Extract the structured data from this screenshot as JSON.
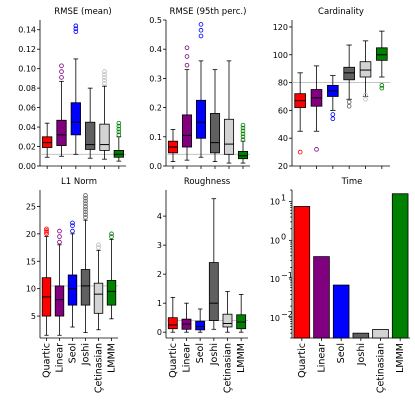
{
  "chart_data": [
    {
      "type": "box",
      "title": "RMSE (mean)",
      "categories": [
        "Quartic",
        "Linear",
        "Seol",
        "Joshi",
        "Çetinasian",
        "LMMM"
      ],
      "colors": [
        "#ff0000",
        "#800080",
        "#0000ff",
        "#606060",
        "#d3d3d3",
        "#008000"
      ],
      "ylim": [
        0,
        0.15
      ],
      "yticks": [
        "0.00",
        "0.02",
        "0.04",
        "0.06",
        "0.08",
        "0.10",
        "0.12",
        "0.14"
      ],
      "ytick_values": [
        0,
        0.02,
        0.04,
        0.06,
        0.08,
        0.1,
        0.12,
        0.14
      ],
      "hline": 0.012,
      "boxes": [
        {
          "min": 0.009,
          "q1": 0.019,
          "median": 0.024,
          "q3": 0.03,
          "max": 0.044,
          "outliers": []
        },
        {
          "min": 0.01,
          "q1": 0.021,
          "median": 0.032,
          "q3": 0.047,
          "max": 0.087,
          "outliers": [
            0.091,
            0.097,
            0.103
          ]
        },
        {
          "min": 0.012,
          "q1": 0.032,
          "median": 0.045,
          "q3": 0.065,
          "max": 0.11,
          "outliers": [
            0.138,
            0.141,
            0.144
          ]
        },
        {
          "min": 0.008,
          "q1": 0.017,
          "median": 0.022,
          "q3": 0.045,
          "max": 0.08,
          "outliers": []
        },
        {
          "min": 0.007,
          "q1": 0.016,
          "median": 0.022,
          "q3": 0.043,
          "max": 0.082,
          "outliers": [
            0.085,
            0.088,
            0.091,
            0.094,
            0.097
          ]
        },
        {
          "min": 0.005,
          "q1": 0.009,
          "median": 0.012,
          "q3": 0.016,
          "max": 0.03,
          "outliers": [
            0.032,
            0.035,
            0.038,
            0.041,
            0.044
          ]
        }
      ]
    },
    {
      "type": "box",
      "title": "RMSE (95th perc.)",
      "categories": [
        "Quartic",
        "Linear",
        "Seol",
        "Joshi",
        "Çetinasian",
        "LMMM"
      ],
      "colors": [
        "#ff0000",
        "#800080",
        "#0000ff",
        "#606060",
        "#d3d3d3",
        "#008000"
      ],
      "ylim": [
        0,
        0.5
      ],
      "yticks": [
        "0.0",
        "0.1",
        "0.2",
        "0.3",
        "0.4",
        "0.5"
      ],
      "ytick_values": [
        0,
        0.1,
        0.2,
        0.3,
        0.4,
        0.5
      ],
      "hline": 0.04,
      "boxes": [
        {
          "min": 0.015,
          "q1": 0.045,
          "median": 0.065,
          "q3": 0.085,
          "max": 0.125,
          "outliers": []
        },
        {
          "min": 0.02,
          "q1": 0.065,
          "median": 0.105,
          "q3": 0.175,
          "max": 0.33,
          "outliers": [
            0.345,
            0.375,
            0.405
          ]
        },
        {
          "min": 0.03,
          "q1": 0.095,
          "median": 0.15,
          "q3": 0.225,
          "max": 0.36,
          "outliers": [
            0.445,
            0.465,
            0.485
          ]
        },
        {
          "min": 0.015,
          "q1": 0.045,
          "median": 0.08,
          "q3": 0.18,
          "max": 0.33,
          "outliers": []
        },
        {
          "min": 0.01,
          "q1": 0.04,
          "median": 0.075,
          "q3": 0.16,
          "max": 0.36,
          "outliers": []
        },
        {
          "min": 0.01,
          "q1": 0.025,
          "median": 0.035,
          "q3": 0.05,
          "max": 0.085,
          "outliers": [
            0.09,
            0.1,
            0.11,
            0.12,
            0.13,
            0.14
          ]
        }
      ]
    },
    {
      "type": "box",
      "title": "Cardinality",
      "categories": [
        "Quartic",
        "Linear",
        "Seol",
        "Joshi",
        "Çetinasian",
        "LMMM"
      ],
      "colors": [
        "#ff0000",
        "#800080",
        "#0000ff",
        "#606060",
        "#d3d3d3",
        "#008000"
      ],
      "ylim": [
        20,
        125
      ],
      "yticks": [
        "20",
        "40",
        "60",
        "80",
        "100",
        "120"
      ],
      "ytick_values": [
        20,
        40,
        60,
        80,
        100,
        120
      ],
      "hline": 80,
      "boxes": [
        {
          "min": 45,
          "q1": 62,
          "median": 67,
          "q3": 72,
          "max": 87,
          "outliers": [
            30
          ]
        },
        {
          "min": 45,
          "q1": 63,
          "median": 69,
          "q3": 75,
          "max": 92,
          "outliers": [
            32
          ]
        },
        {
          "min": 60,
          "q1": 70,
          "median": 74,
          "q3": 78,
          "max": 85,
          "outliers": [
            54,
            57
          ]
        },
        {
          "min": 68,
          "q1": 82,
          "median": 87,
          "q3": 91,
          "max": 107,
          "outliers": [
            63,
            66
          ]
        },
        {
          "min": 70,
          "q1": 84,
          "median": 89,
          "q3": 95,
          "max": 110,
          "outliers": [
            68,
            71
          ]
        },
        {
          "min": 84,
          "q1": 96,
          "median": 100,
          "q3": 105,
          "max": 117,
          "outliers": [
            76,
            78
          ]
        }
      ]
    },
    {
      "type": "box",
      "title": "L1 Norm",
      "categories": [
        "Quartic",
        "Linear",
        "Seol",
        "Joshi",
        "Çetinasian",
        "LMMM"
      ],
      "colors": [
        "#ff0000",
        "#800080",
        "#0000ff",
        "#606060",
        "#d3d3d3",
        "#008000"
      ],
      "ylim": [
        1,
        28
      ],
      "yticks": [
        "5",
        "10",
        "15",
        "20",
        "25"
      ],
      "ytick_values": [
        5,
        10,
        15,
        20,
        25
      ],
      "hline": 10.5,
      "boxes": [
        {
          "min": 1.5,
          "q1": 5,
          "median": 8.5,
          "q3": 12,
          "max": 19.5,
          "outliers": [
            20,
            20.3,
            20.6,
            20.9
          ]
        },
        {
          "min": 1.5,
          "q1": 5,
          "median": 8,
          "q3": 10.5,
          "max": 18,
          "outliers": [
            18.5,
            19.5,
            20.5
          ]
        },
        {
          "min": 3,
          "q1": 7,
          "median": 10,
          "q3": 12.5,
          "max": 20,
          "outliers": [
            20.5,
            21.5,
            22
          ]
        },
        {
          "min": 2,
          "q1": 7,
          "median": 10.5,
          "q3": 13.5,
          "max": 22.5,
          "outliers": [
            23,
            23.5,
            24,
            24.5,
            25,
            25.5,
            26,
            26.5,
            27
          ]
        },
        {
          "min": 2.5,
          "q1": 5.5,
          "median": 9,
          "q3": 11,
          "max": 17,
          "outliers": [
            17.5,
            18
          ]
        },
        {
          "min": 4.5,
          "q1": 7,
          "median": 9.5,
          "q3": 11.5,
          "max": 19,
          "outliers": [
            19.5,
            20
          ]
        }
      ]
    },
    {
      "type": "box",
      "title": "Roughness",
      "categories": [
        "Quartic",
        "Linear",
        "Seol",
        "Joshi",
        "Çetinasian",
        "LMMM"
      ],
      "colors": [
        "#ff0000",
        "#800080",
        "#0000ff",
        "#606060",
        "#d3d3d3",
        "#008000"
      ],
      "ylim": [
        -0.2,
        4.9
      ],
      "yticks": [
        "0",
        "1",
        "2",
        "3",
        "4"
      ],
      "ytick_values": [
        0,
        1,
        2,
        3,
        4
      ],
      "hline": 0.4,
      "boxes": [
        {
          "min": 0.0,
          "q1": 0.12,
          "median": 0.25,
          "q3": 0.5,
          "max": 1.2,
          "outliers": []
        },
        {
          "min": 0.0,
          "q1": 0.1,
          "median": 0.28,
          "q3": 0.45,
          "max": 1.0,
          "outliers": []
        },
        {
          "min": 0.0,
          "q1": 0.08,
          "median": 0.2,
          "q3": 0.38,
          "max": 0.8,
          "outliers": []
        },
        {
          "min": 0.1,
          "q1": 0.4,
          "median": 1.0,
          "q3": 2.4,
          "max": 4.6,
          "outliers": []
        },
        {
          "min": 0.0,
          "q1": 0.18,
          "median": 0.3,
          "q3": 0.62,
          "max": 1.4,
          "outliers": []
        },
        {
          "min": 0.0,
          "q1": 0.12,
          "median": 0.35,
          "q3": 0.6,
          "max": 1.3,
          "outliers": []
        }
      ]
    },
    {
      "type": "bar",
      "title": "Time",
      "yscale": "log",
      "categories": [
        "Quartic",
        "Linear",
        "Seol",
        "Joshi",
        "Çetinasian",
        "LMMM"
      ],
      "colors": [
        "#ff0000",
        "#800080",
        "#0000ff",
        "#606060",
        "#d3d3d3",
        "#008000"
      ],
      "ylim": [
        0.003,
        20
      ],
      "ytick_values": [
        0.01,
        0.1,
        1,
        10
      ],
      "ytick_labels": [
        {
          "base": "10",
          "exp": "−2"
        },
        {
          "base": "10",
          "exp": "−1"
        },
        {
          "base": "10",
          "exp": "0"
        },
        {
          "base": "10",
          "exp": "1"
        }
      ],
      "values": [
        7.5,
        0.38,
        0.07,
        0.004,
        0.005,
        16
      ]
    }
  ]
}
